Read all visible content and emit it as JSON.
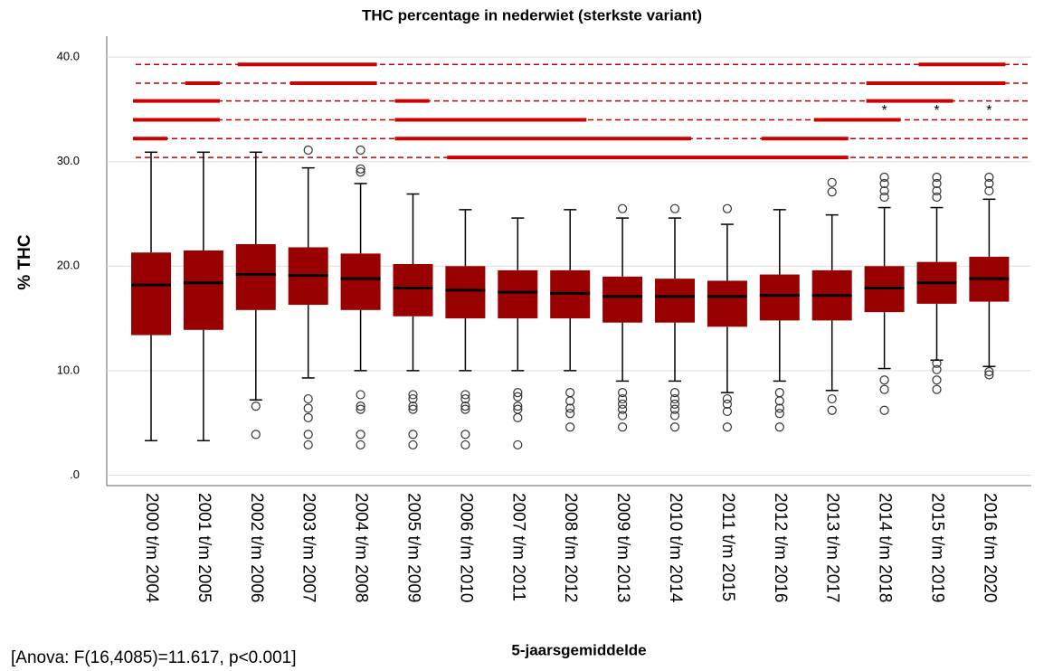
{
  "chart_data": {
    "type": "boxplot",
    "title": "THC percentage in nederwiet (sterkste variant)",
    "ylabel": "% THC",
    "xlabel": "5-jaarsgemiddelde",
    "annotation": "[Anova: F(16,4085)=11.617, p<0.001]",
    "color": "#990000",
    "line_color": "#cc0000",
    "grid": true,
    "ylim": [
      -1.0,
      42.0
    ],
    "yticks": [
      {
        "value": 0,
        "label": ".0"
      },
      {
        "value": 10,
        "label": "10.0"
      },
      {
        "value": 20,
        "label": "20.0"
      },
      {
        "value": 30,
        "label": "30.0"
      },
      {
        "value": 40,
        "label": "40.0"
      }
    ],
    "categories": [
      "2000 t/m 2004",
      "2001 t/m 2005",
      "2002 t/m 2006",
      "2003 t/m 2007",
      "2004 t/m 2008",
      "2005 t/m 2009",
      "2006 t/m 2010",
      "2007 t/m 2011",
      "2008 t/m 2012",
      "2009 t/m 2013",
      "2010 t/m 2014",
      "2011 t/m 2015",
      "2012 t/m 2016",
      "2013 t/m 2017",
      "2014 t/m 2018",
      "2015 t/m 2019",
      "2016 t/m 2020"
    ],
    "boxes": [
      {
        "whisker_low": 3.3,
        "q1": 13.4,
        "median": 18.2,
        "q3": 21.3,
        "whisker_high": 30.9,
        "outliers": []
      },
      {
        "whisker_low": 3.3,
        "q1": 13.9,
        "median": 18.4,
        "q3": 21.5,
        "whisker_high": 30.9,
        "outliers": []
      },
      {
        "whisker_low": 7.2,
        "q1": 15.8,
        "median": 19.2,
        "q3": 22.1,
        "whisker_high": 30.9,
        "outliers": [
          6.6,
          3.9
        ]
      },
      {
        "whisker_low": 9.3,
        "q1": 16.3,
        "median": 19.1,
        "q3": 21.8,
        "whisker_high": 29.4,
        "outliers": [
          31.1,
          7.3,
          6.4,
          5.5,
          3.9,
          2.9
        ]
      },
      {
        "whisker_low": 10.0,
        "q1": 15.8,
        "median": 18.8,
        "q3": 21.2,
        "whisker_high": 27.9,
        "outliers": [
          31.1,
          29.3,
          29.0,
          7.7,
          6.6,
          6.3,
          3.9,
          2.9
        ]
      },
      {
        "whisker_low": 10.0,
        "q1": 15.2,
        "median": 17.9,
        "q3": 20.2,
        "whisker_high": 26.9,
        "outliers": [
          7.7,
          7.3,
          6.6,
          6.3,
          3.9,
          2.9
        ]
      },
      {
        "whisker_low": 10.0,
        "q1": 15.0,
        "median": 17.7,
        "q3": 20.0,
        "whisker_high": 25.4,
        "outliers": [
          7.7,
          7.3,
          6.6,
          6.3,
          3.9,
          2.9
        ]
      },
      {
        "whisker_low": 10.0,
        "q1": 15.0,
        "median": 17.5,
        "q3": 19.6,
        "whisker_high": 24.6,
        "outliers": [
          7.9,
          7.5,
          6.6,
          6.3,
          5.5,
          2.9
        ]
      },
      {
        "whisker_low": 10.0,
        "q1": 15.0,
        "median": 17.4,
        "q3": 19.6,
        "whisker_high": 25.4,
        "outliers": [
          7.9,
          7.1,
          6.4,
          5.9,
          4.6
        ]
      },
      {
        "whisker_low": 9.0,
        "q1": 14.6,
        "median": 17.1,
        "q3": 19.0,
        "whisker_high": 24.6,
        "outliers": [
          25.5,
          7.9,
          7.3,
          6.8,
          6.3,
          5.7,
          4.6
        ]
      },
      {
        "whisker_low": 9.0,
        "q1": 14.6,
        "median": 17.1,
        "q3": 18.8,
        "whisker_high": 24.6,
        "outliers": [
          25.5,
          7.9,
          7.3,
          6.8,
          6.3,
          5.7,
          4.6
        ]
      },
      {
        "whisker_low": 7.9,
        "q1": 14.2,
        "median": 17.1,
        "q3": 18.6,
        "whisker_high": 24.0,
        "outliers": [
          25.5,
          7.3,
          6.8,
          6.1,
          4.6
        ]
      },
      {
        "whisker_low": 9.0,
        "q1": 14.8,
        "median": 17.2,
        "q3": 19.2,
        "whisker_high": 25.4,
        "outliers": [
          7.9,
          7.1,
          6.4,
          5.9,
          4.6
        ]
      },
      {
        "whisker_low": 8.1,
        "q1": 14.8,
        "median": 17.2,
        "q3": 19.6,
        "whisker_high": 24.9,
        "outliers": [
          28.0,
          27.1,
          7.3,
          6.2
        ]
      },
      {
        "whisker_low": 10.2,
        "q1": 15.6,
        "median": 17.9,
        "q3": 20.0,
        "whisker_high": 25.6,
        "outliers": [
          28.5,
          27.9,
          27.2,
          26.6,
          9.1,
          8.2,
          6.2
        ]
      },
      {
        "whisker_low": 11.0,
        "q1": 16.4,
        "median": 18.4,
        "q3": 20.4,
        "whisker_high": 25.6,
        "outliers": [
          28.5,
          27.9,
          27.2,
          26.6,
          10.7,
          10.1,
          9.1,
          8.2
        ]
      },
      {
        "whisker_low": 10.4,
        "q1": 16.6,
        "median": 18.8,
        "q3": 20.9,
        "whisker_high": 26.4,
        "outliers": [
          28.5,
          27.9,
          27.2,
          9.9,
          9.6
        ]
      }
    ],
    "significance_lines": [
      {
        "y": 39.3,
        "segments": [
          [
            "2002 t/m 2006",
            "2004 t/m 2008"
          ],
          [
            "2015 t/m 2019",
            "2016 t/m 2020"
          ]
        ]
      },
      {
        "y": 37.5,
        "segments": [
          [
            "2001 t/m 2005",
            "2001 t/m 2005"
          ],
          [
            "2003 t/m 2007",
            "2004 t/m 2008"
          ],
          [
            "2014 t/m 2018",
            "2016 t/m 2020"
          ]
        ]
      },
      {
        "y": 35.8,
        "segments": [
          [
            "2000 t/m 2004",
            "2001 t/m 2005"
          ],
          [
            "2005 t/m 2009",
            "2005 t/m 2009"
          ],
          [
            "2014 t/m 2018",
            "2015 t/m 2019"
          ]
        ]
      },
      {
        "y": 34.0,
        "segments": [
          [
            "2000 t/m 2004",
            "2001 t/m 2005"
          ],
          [
            "2005 t/m 2009",
            "2008 t/m 2012"
          ],
          [
            "2013 t/m 2017",
            "2014 t/m 2018"
          ]
        ]
      },
      {
        "y": 32.2,
        "segments": [
          [
            "2000 t/m 2004",
            "2000 t/m 2004"
          ],
          [
            "2005 t/m 2009",
            "2010 t/m 2014"
          ],
          [
            "2012 t/m 2016",
            "2013 t/m 2017"
          ]
        ]
      },
      {
        "y": 30.4,
        "segments": [
          [
            "2006 t/m 2010",
            "2013 t/m 2017"
          ]
        ]
      }
    ],
    "markers": [
      {
        "category": "2014 t/m 2018",
        "label": "*",
        "y": 35.2
      },
      {
        "category": "2015 t/m 2019",
        "label": "*",
        "y": 35.2
      },
      {
        "category": "2016 t/m 2020",
        "label": "*",
        "y": 35.2
      }
    ]
  }
}
